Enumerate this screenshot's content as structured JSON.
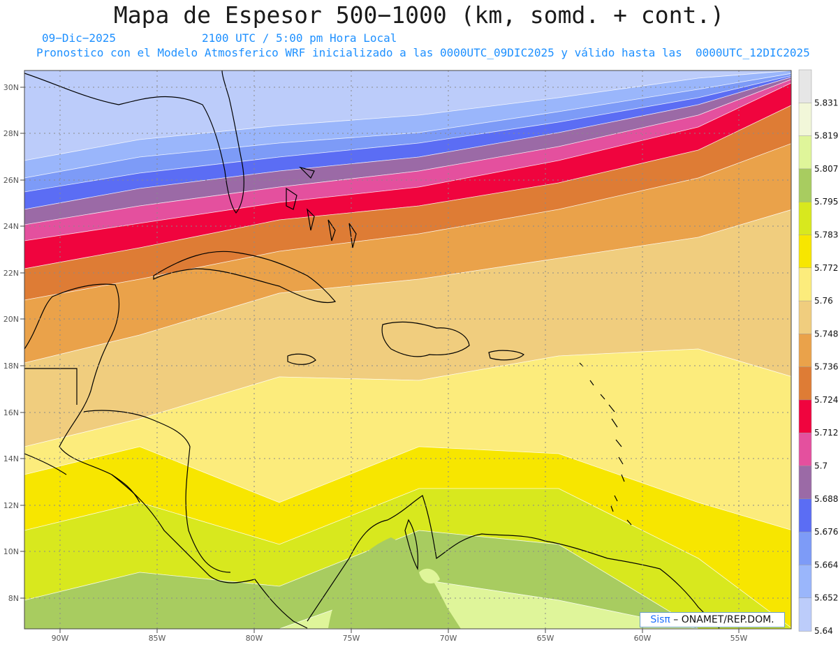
{
  "title": "Mapa de Espesor 500−1000 (km, somd. + cont.)",
  "date": "09−Dic−2025",
  "time": "2100 UTC / 5:00 pm Hora Local",
  "description": "Pronostico con el Modelo Atmosferico WRF inicializado a las 0000UTC_09DIC2025 y válido hasta las  0000UTC_12DIC2025",
  "credit": {
    "brand": "Sisπ",
    "text": " – ONAMET/REP.DOM."
  },
  "lat_ticks": [
    "30N",
    "28N",
    "26N",
    "24N",
    "22N",
    "20N",
    "18N",
    "16N",
    "14N",
    "12N",
    "10N",
    "8N"
  ],
  "lon_ticks": [
    "90W",
    "85W",
    "80W",
    "75W",
    "70W",
    "65W",
    "60W",
    "55W"
  ],
  "legend": {
    "labels": [
      "5.831",
      "5.819",
      "5.807",
      "5.795",
      "5.783",
      "5.772",
      "5.76",
      "5.748",
      "5.736",
      "5.724",
      "5.712",
      "5.7",
      "5.688",
      "5.676",
      "5.664",
      "5.652",
      "5.64"
    ],
    "colors": [
      "#e6e6e6",
      "#f2f7d9",
      "#dff59a",
      "#a8cc60",
      "#d8e81e",
      "#f7e600",
      "#fcec7c",
      "#f0cd7e",
      "#eaa24a",
      "#de7c35",
      "#f0043e",
      "#e4509e",
      "#9b6aa6",
      "#5b6df4",
      "#7d9bf7",
      "#9ab6fb",
      "#bcccfa"
    ]
  },
  "bands": {
    "palette": [
      "#bcccfa",
      "#9ab6fb",
      "#7d9bf7",
      "#5b6df4",
      "#9b6aa6",
      "#e4509e",
      "#f0043e",
      "#de7c35",
      "#eaa24a",
      "#f0cd7e",
      "#fcec7c",
      "#f7e600",
      "#d8e81e",
      "#a8cc60",
      "#dff59a"
    ]
  }
}
